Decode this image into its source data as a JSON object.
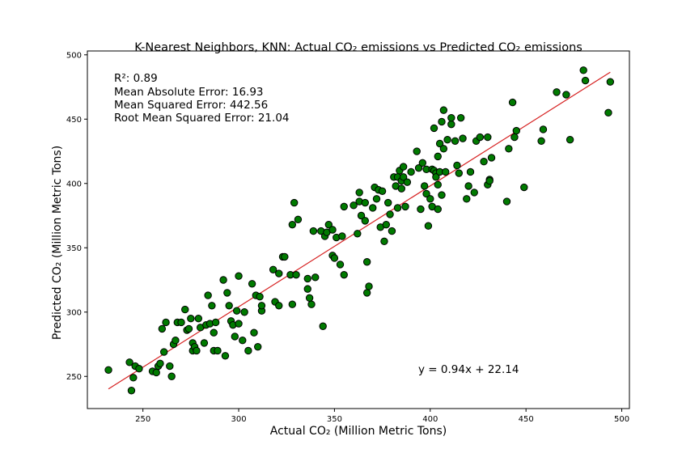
{
  "chart_data": {
    "type": "scatter",
    "title": "K-Nearest Neighbors, KNN: Actual CO₂ emissions vs Predicted CO₂ emissions",
    "xlabel": "Actual CO₂ (Million Metric Tons)",
    "ylabel": "Predicted CO₂ (Million Metric Tons)",
    "xlim": [
      221,
      504
    ],
    "ylim": [
      225,
      503
    ],
    "xticks": [
      250,
      300,
      350,
      400,
      450,
      500
    ],
    "yticks": [
      250,
      300,
      350,
      400,
      450,
      500
    ],
    "grid": false,
    "stats": [
      "R²: 0.89",
      "Mean Absolute Error: 16.93",
      "Mean Squared Error: 442.56",
      "Root Mean Squared Error: 21.04"
    ],
    "equation": "y = 0.94x + 22.14",
    "fit_line": {
      "slope": 0.94,
      "intercept": 22.14,
      "x_range": [
        232,
        494
      ]
    },
    "colors": {
      "points": "#007a00",
      "point_edge": "#000000",
      "fit_line": "#d62020"
    },
    "points": [
      [
        232,
        255
      ],
      [
        243,
        261
      ],
      [
        244,
        239
      ],
      [
        245,
        249
      ],
      [
        246,
        258
      ],
      [
        248,
        256
      ],
      [
        255,
        254
      ],
      [
        257,
        253
      ],
      [
        258,
        258
      ],
      [
        259,
        260
      ],
      [
        260,
        287
      ],
      [
        261,
        269
      ],
      [
        262,
        292
      ],
      [
        264,
        258
      ],
      [
        265,
        250
      ],
      [
        266,
        275
      ],
      [
        267,
        278
      ],
      [
        268,
        292
      ],
      [
        270,
        292
      ],
      [
        272,
        302
      ],
      [
        273,
        286
      ],
      [
        274,
        287
      ],
      [
        275,
        295
      ],
      [
        276,
        270
      ],
      [
        276,
        276
      ],
      [
        277,
        273
      ],
      [
        278,
        270
      ],
      [
        279,
        295
      ],
      [
        280,
        288
      ],
      [
        282,
        276
      ],
      [
        283,
        290
      ],
      [
        284,
        313
      ],
      [
        285,
        291
      ],
      [
        286,
        305
      ],
      [
        287,
        284
      ],
      [
        287,
        270
      ],
      [
        288,
        292
      ],
      [
        289,
        270
      ],
      [
        292,
        325
      ],
      [
        293,
        266
      ],
      [
        294,
        315
      ],
      [
        295,
        305
      ],
      [
        296,
        293
      ],
      [
        297,
        290
      ],
      [
        298,
        281
      ],
      [
        299,
        301
      ],
      [
        300,
        328
      ],
      [
        300,
        291
      ],
      [
        302,
        278
      ],
      [
        303,
        300
      ],
      [
        305,
        270
      ],
      [
        307,
        322
      ],
      [
        308,
        284
      ],
      [
        309,
        313
      ],
      [
        310,
        273
      ],
      [
        311,
        312
      ],
      [
        312,
        301
      ],
      [
        312,
        305
      ],
      [
        318,
        333
      ],
      [
        319,
        308
      ],
      [
        321,
        305
      ],
      [
        321,
        330
      ],
      [
        323,
        343
      ],
      [
        324,
        343
      ],
      [
        327,
        329
      ],
      [
        328,
        306
      ],
      [
        328,
        368
      ],
      [
        329,
        385
      ],
      [
        330,
        329
      ],
      [
        331,
        372
      ],
      [
        336,
        326
      ],
      [
        336,
        318
      ],
      [
        337,
        311
      ],
      [
        338,
        306
      ],
      [
        339,
        363
      ],
      [
        340,
        327
      ],
      [
        343,
        363
      ],
      [
        344,
        289
      ],
      [
        345,
        359
      ],
      [
        346,
        362
      ],
      [
        347,
        368
      ],
      [
        349,
        364
      ],
      [
        349,
        344
      ],
      [
        350,
        342
      ],
      [
        351,
        358
      ],
      [
        353,
        337
      ],
      [
        354,
        359
      ],
      [
        355,
        329
      ],
      [
        355,
        382
      ],
      [
        360,
        383
      ],
      [
        362,
        361
      ],
      [
        363,
        393
      ],
      [
        363,
        386
      ],
      [
        364,
        375
      ],
      [
        366,
        371
      ],
      [
        366,
        385
      ],
      [
        367,
        339
      ],
      [
        367,
        315
      ],
      [
        368,
        320
      ],
      [
        370,
        381
      ],
      [
        371,
        397
      ],
      [
        372,
        388
      ],
      [
        373,
        395
      ],
      [
        374,
        366
      ],
      [
        375,
        394
      ],
      [
        376,
        355
      ],
      [
        377,
        368
      ],
      [
        378,
        385
      ],
      [
        379,
        376
      ],
      [
        380,
        363
      ],
      [
        381,
        405
      ],
      [
        382,
        398
      ],
      [
        383,
        381
      ],
      [
        383,
        405
      ],
      [
        384,
        410
      ],
      [
        385,
        402
      ],
      [
        385,
        396
      ],
      [
        386,
        413
      ],
      [
        386,
        405
      ],
      [
        387,
        382
      ],
      [
        388,
        401
      ],
      [
        390,
        409
      ],
      [
        393,
        425
      ],
      [
        394,
        412
      ],
      [
        395,
        380
      ],
      [
        396,
        416
      ],
      [
        397,
        398
      ],
      [
        398,
        392
      ],
      [
        398,
        411
      ],
      [
        399,
        367
      ],
      [
        400,
        388
      ],
      [
        401,
        382
      ],
      [
        401,
        411
      ],
      [
        402,
        410
      ],
      [
        402,
        443
      ],
      [
        403,
        408
      ],
      [
        403,
        405
      ],
      [
        404,
        421
      ],
      [
        404,
        399
      ],
      [
        404,
        380
      ],
      [
        405,
        409
      ],
      [
        405,
        431
      ],
      [
        406,
        391
      ],
      [
        406,
        448
      ],
      [
        407,
        427
      ],
      [
        407,
        457
      ],
      [
        408,
        409
      ],
      [
        409,
        434
      ],
      [
        411,
        446
      ],
      [
        411,
        451
      ],
      [
        413,
        433
      ],
      [
        414,
        414
      ],
      [
        415,
        408
      ],
      [
        416,
        451
      ],
      [
        417,
        435
      ],
      [
        419,
        388
      ],
      [
        420,
        398
      ],
      [
        421,
        409
      ],
      [
        423,
        393
      ],
      [
        424,
        433
      ],
      [
        426,
        436
      ],
      [
        428,
        417
      ],
      [
        430,
        436
      ],
      [
        430,
        399
      ],
      [
        431,
        403
      ],
      [
        431,
        402
      ],
      [
        432,
        420
      ],
      [
        440,
        386
      ],
      [
        441,
        427
      ],
      [
        443,
        463
      ],
      [
        444,
        436
      ],
      [
        445,
        441
      ],
      [
        449,
        397
      ],
      [
        458,
        433
      ],
      [
        459,
        442
      ],
      [
        466,
        471
      ],
      [
        471,
        469
      ],
      [
        473,
        434
      ],
      [
        480,
        488
      ],
      [
        481,
        480
      ],
      [
        493,
        455
      ],
      [
        494,
        479
      ]
    ]
  }
}
